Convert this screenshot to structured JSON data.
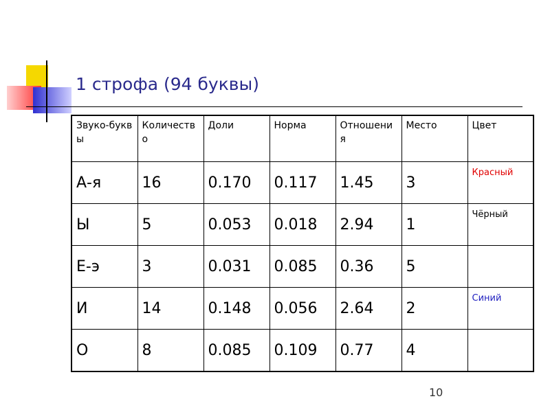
{
  "title": "1 строфа (94 буквы)",
  "table": {
    "header": [
      "Звуко-буквы",
      "Количество",
      "Доли",
      "Норма",
      "Отношения",
      "Место",
      "Цвет"
    ],
    "rows": [
      {
        "cells": [
          "А-я",
          "16",
          "0.170",
          "0.117",
          "1.45",
          "3"
        ],
        "color_label": "Красный",
        "color": "#e00000"
      },
      {
        "cells": [
          "Ы",
          "5",
          "0.053",
          "0.018",
          "2.94",
          "1"
        ],
        "color_label": "Чёрный",
        "color": "#000000"
      },
      {
        "cells": [
          "Е-э",
          "3",
          "0.031",
          "0.085",
          "0.36",
          "5"
        ]
      },
      {
        "cells": [
          "И",
          "14",
          "0.148",
          "0.056",
          "2.64",
          "2"
        ],
        "color_label": "Синий",
        "color": "#2020c0"
      },
      {
        "cells": [
          "О",
          "8",
          "0.085",
          "0.109",
          "0.77",
          "4"
        ]
      }
    ]
  },
  "page_number": "10"
}
